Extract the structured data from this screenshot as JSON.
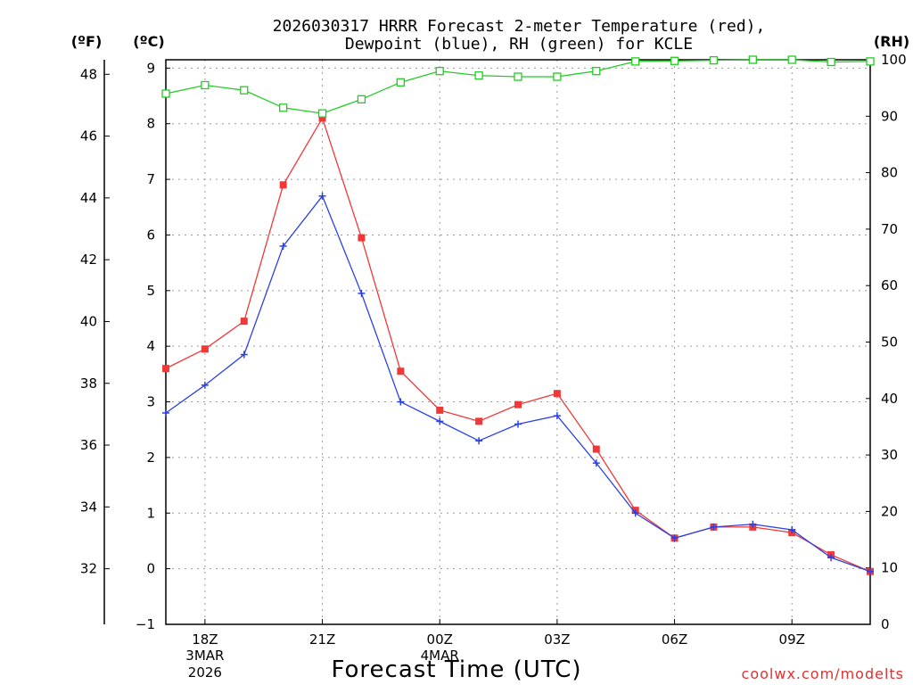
{
  "chart_data": {
    "type": "line",
    "title_line1": "2026030317 HRRR Forecast 2-meter Temperature (red),",
    "title_line2": "Dewpoint (blue), RH (green) for KCLE",
    "xlabel": "Forecast Time (UTC)",
    "credit": "coolwx.com/modelts",
    "units": {
      "fahrenheit": "(ºF)",
      "celsius": "(ºC)",
      "rh": "(RH)"
    },
    "x": [
      17,
      18,
      19,
      20,
      21,
      22,
      23,
      24,
      25,
      26,
      27,
      28,
      29,
      30,
      31,
      32,
      33,
      34,
      35
    ],
    "x_ticks": [
      {
        "x": 18,
        "label": "18Z",
        "sub1": "3MAR",
        "sub2": "2026"
      },
      {
        "x": 21,
        "label": "21Z",
        "sub1": "",
        "sub2": ""
      },
      {
        "x": 24,
        "label": "00Z",
        "sub1": "4MAR",
        "sub2": ""
      },
      {
        "x": 27,
        "label": "03Z",
        "sub1": "",
        "sub2": ""
      },
      {
        "x": 30,
        "label": "06Z",
        "sub1": "",
        "sub2": ""
      },
      {
        "x": 33,
        "label": "09Z",
        "sub1": "",
        "sub2": ""
      }
    ],
    "xlim": [
      17,
      35
    ],
    "celsius_lim": [
      -1,
      9.15
    ],
    "celsius_ticks": [
      -1,
      0,
      1,
      2,
      3,
      4,
      5,
      6,
      7,
      8,
      9
    ],
    "fahrenheit_ticks": [
      32,
      34,
      36,
      38,
      40,
      42,
      44,
      46,
      48
    ],
    "rh_lim": [
      0,
      100
    ],
    "rh_ticks": [
      0,
      10,
      20,
      30,
      40,
      50,
      60,
      70,
      80,
      90,
      100
    ],
    "series": [
      {
        "name": "Temperature",
        "axis": "celsius",
        "color": "#f03838",
        "marker": "filled-square",
        "values": [
          3.6,
          3.95,
          4.45,
          6.9,
          8.1,
          5.95,
          3.55,
          2.85,
          2.65,
          2.95,
          3.15,
          2.15,
          1.05,
          0.55,
          0.75,
          0.75,
          0.65,
          0.25,
          -0.05
        ]
      },
      {
        "name": "Dewpoint",
        "axis": "celsius",
        "color": "#2a40e8",
        "marker": "plus",
        "values": [
          2.8,
          3.3,
          3.85,
          5.8,
          6.7,
          4.95,
          3.0,
          2.65,
          2.3,
          2.6,
          2.75,
          1.9,
          1.0,
          0.55,
          0.75,
          0.8,
          0.7,
          0.2,
          -0.05
        ]
      },
      {
        "name": "RH",
        "axis": "rh",
        "color": "#22cc22",
        "marker": "open-square",
        "values": [
          94,
          95.5,
          94.6,
          91.5,
          90.5,
          93,
          96,
          98,
          97.2,
          97,
          97,
          98,
          99.7,
          99.8,
          99.9,
          100,
          100,
          99.6,
          99.7
        ]
      }
    ]
  }
}
